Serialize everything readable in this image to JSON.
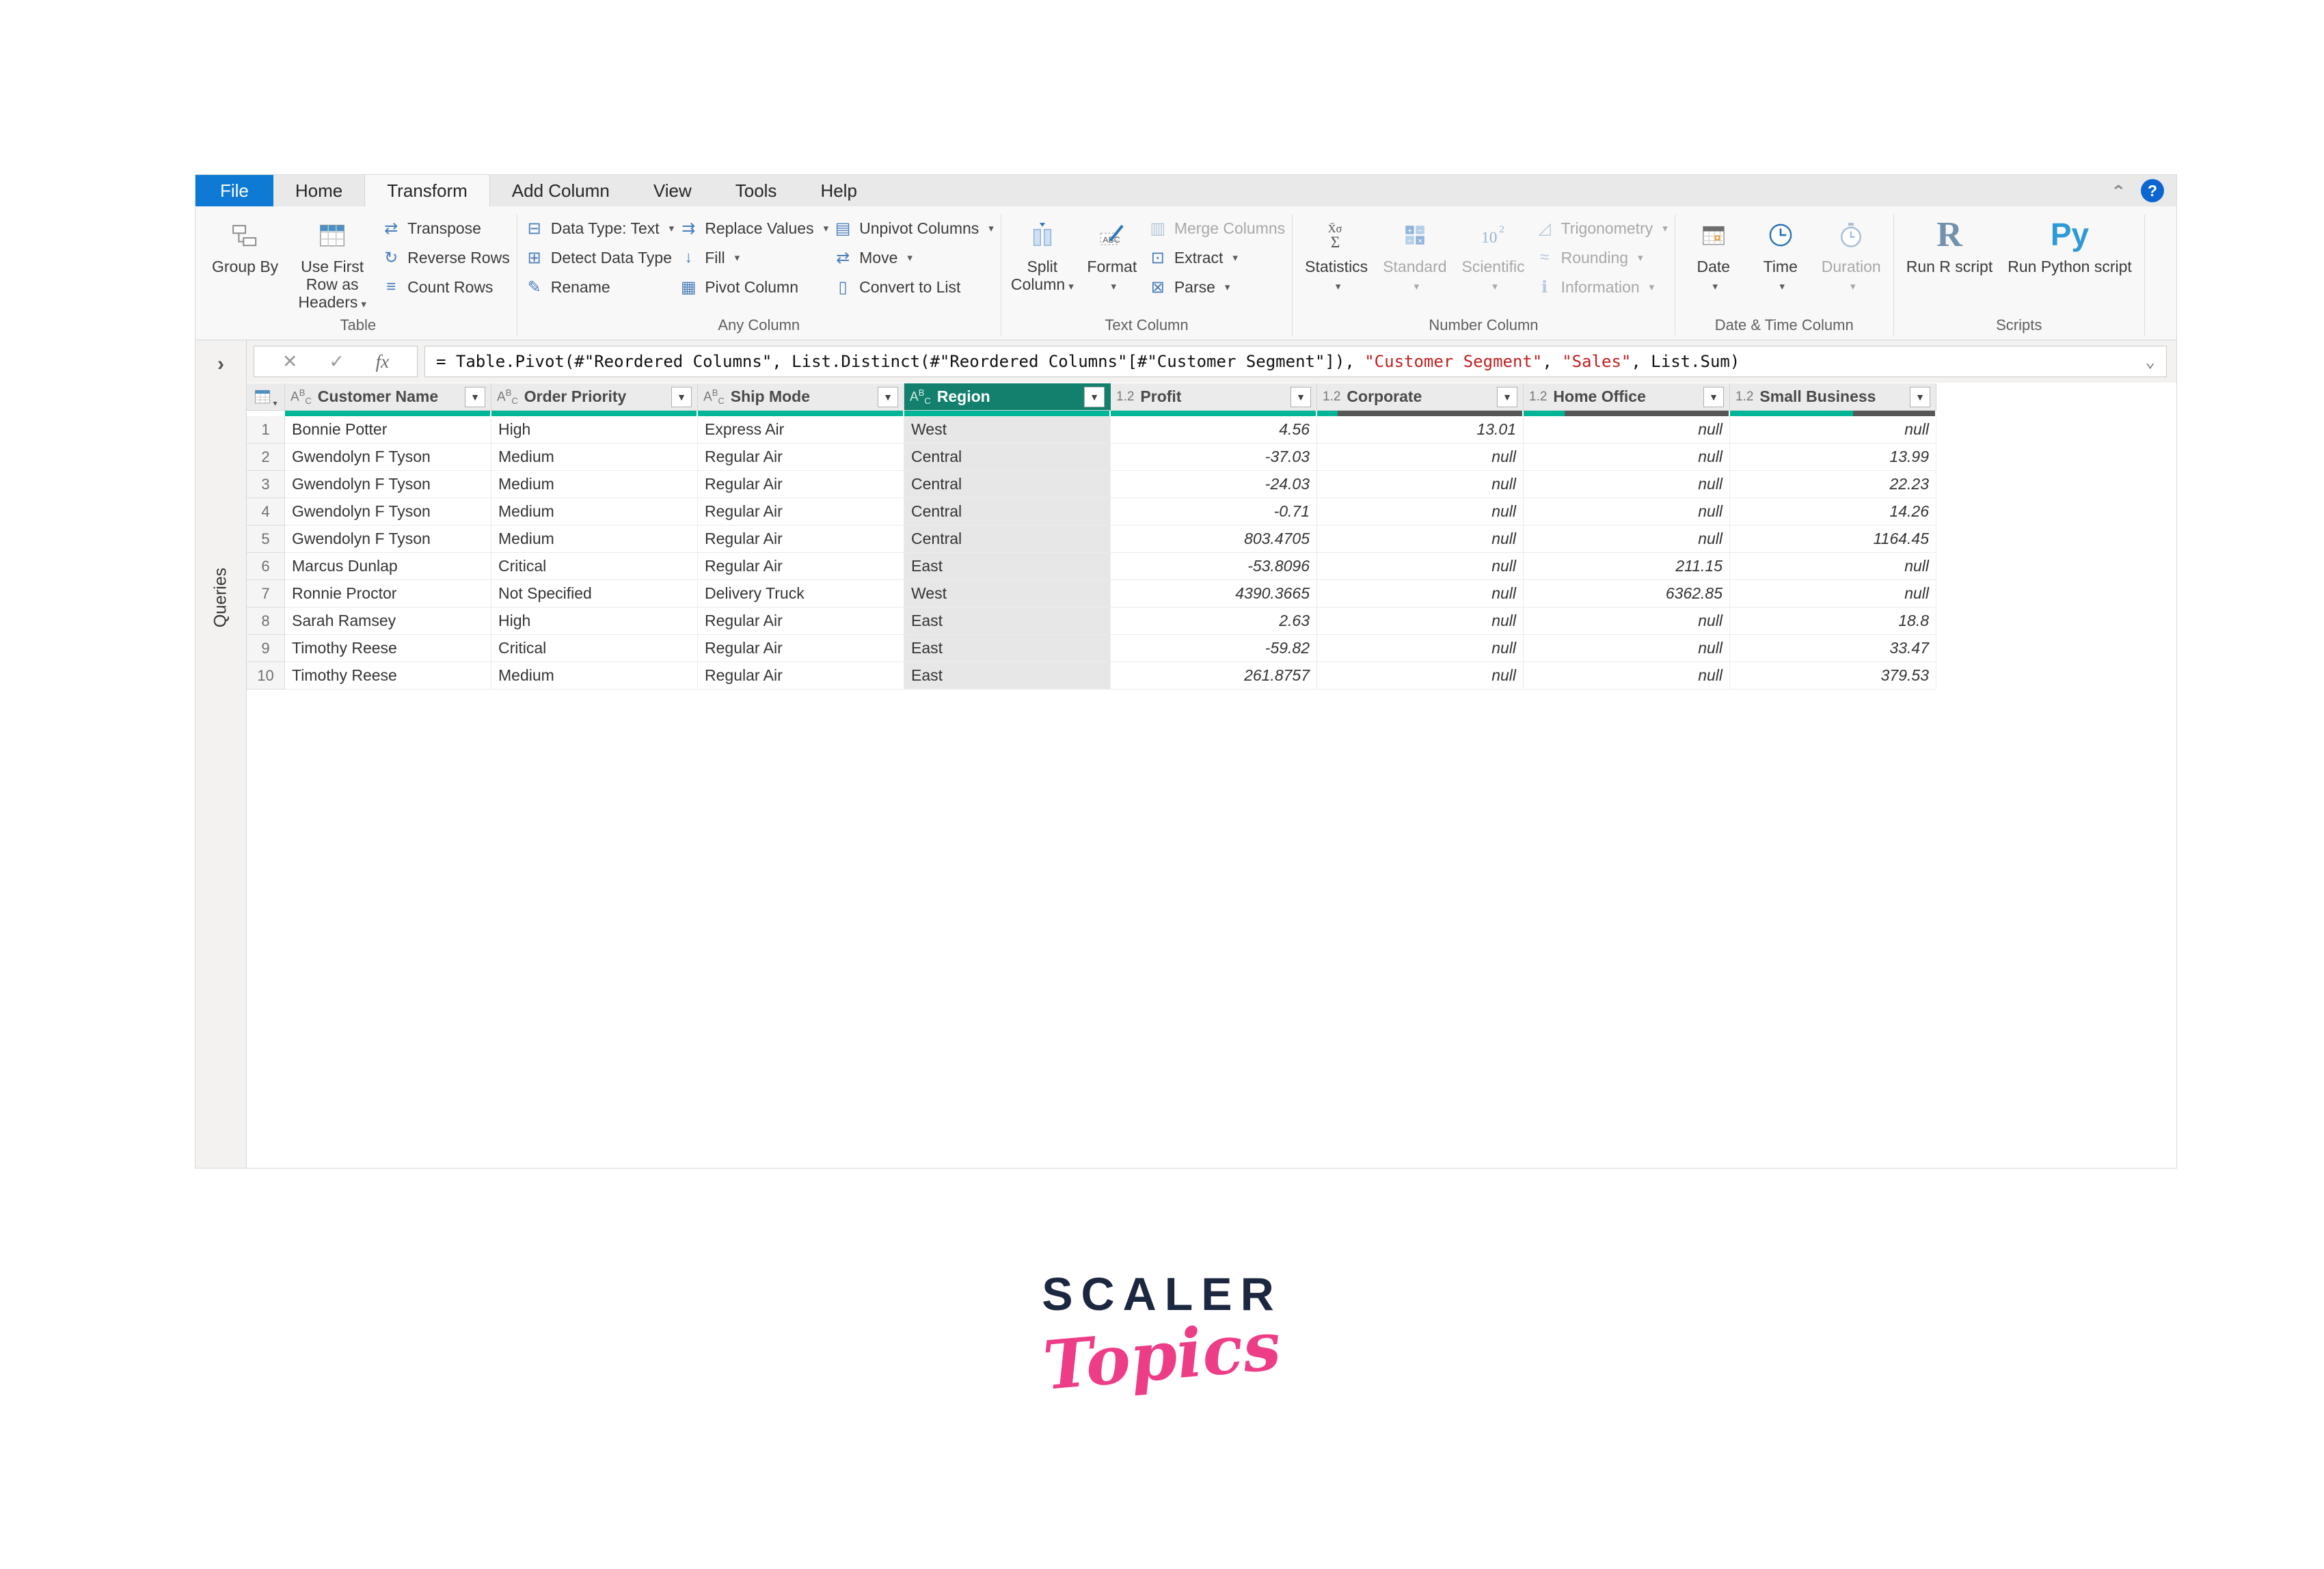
{
  "colors": {
    "file_tab_blue": "#0e7ad3",
    "selected_header_teal": "#12806d",
    "quality_bar_teal": "#00b696",
    "quality_bar_empty": "#575757",
    "formula_string_red": "#c02020",
    "logo_navy": "#1c2740",
    "logo_pink": "#ee3d87"
  },
  "tabs": {
    "file": "File",
    "home": "Home",
    "transform": "Transform",
    "add_column": "Add Column",
    "view": "View",
    "tools": "Tools",
    "help": "Help"
  },
  "window_controls": {
    "collapse_ribbon": "^",
    "help": "?"
  },
  "ribbon": {
    "table": {
      "label": "Table",
      "group_by": "Group By",
      "use_first_row": "Use First Row as Headers",
      "transpose": "Transpose",
      "reverse_rows": "Reverse Rows",
      "count_rows": "Count Rows"
    },
    "any_column": {
      "label": "Any Column",
      "data_type": "Data Type: Text",
      "detect_data_type": "Detect Data Type",
      "rename": "Rename",
      "replace_values": "Replace Values",
      "fill": "Fill",
      "pivot_column": "Pivot Column",
      "unpivot_columns": "Unpivot Columns",
      "move": "Move",
      "convert_to_list": "Convert to List"
    },
    "text_column": {
      "label": "Text Column",
      "split_column": "Split Column",
      "format": "Format",
      "merge_columns": "Merge Columns",
      "extract": "Extract",
      "parse": "Parse"
    },
    "number_column": {
      "label": "Number Column",
      "statistics": "Statistics",
      "standard": "Standard",
      "scientific": "Scientific",
      "trigonometry": "Trigonometry",
      "rounding": "Rounding",
      "information": "Information"
    },
    "date_time": {
      "label": "Date & Time Column",
      "date": "Date",
      "time": "Time",
      "duration": "Duration"
    },
    "scripts": {
      "label": "Scripts",
      "run_r": "Run R script",
      "run_python": "Run Python script",
      "r_icon": "R",
      "py_icon": "Py"
    }
  },
  "formula_bar": {
    "pre": "= Table.Pivot(#\"Reordered Columns\", List.Distinct(#\"Reordered Columns\"[#\"Customer Segment\"]), ",
    "str1": "\"Customer Segment\"",
    "comma": ", ",
    "str2": "\"Sales\"",
    "post": ", List.Sum)"
  },
  "sidebar": {
    "label": "Queries"
  },
  "grid": {
    "columns": [
      {
        "name": "Customer Name",
        "type": "text",
        "type_icon": "ABC",
        "quality": 1,
        "selected": false
      },
      {
        "name": "Order Priority",
        "type": "text",
        "type_icon": "ABC",
        "quality": 1,
        "selected": false
      },
      {
        "name": "Ship Mode",
        "type": "text",
        "type_icon": "ABC",
        "quality": 1,
        "selected": false
      },
      {
        "name": "Region",
        "type": "text",
        "type_icon": "ABC",
        "quality": 1,
        "selected": true
      },
      {
        "name": "Profit",
        "type": "number",
        "type_icon": "1.2",
        "quality": 1,
        "selected": false
      },
      {
        "name": "Corporate",
        "type": "number",
        "type_icon": "1.2",
        "quality": 0.1,
        "selected": false
      },
      {
        "name": "Home Office",
        "type": "number",
        "type_icon": "1.2",
        "quality": 0.2,
        "selected": false
      },
      {
        "name": "Small Business",
        "type": "number",
        "type_icon": "1.2",
        "quality": 0.6,
        "selected": false
      }
    ],
    "rows": [
      [
        "Bonnie Potter",
        "High",
        "Express Air",
        "West",
        "4.56",
        "13.01",
        "null",
        "null"
      ],
      [
        "Gwendolyn F Tyson",
        "Medium",
        "Regular Air",
        "Central",
        "-37.03",
        "null",
        "null",
        "13.99"
      ],
      [
        "Gwendolyn F Tyson",
        "Medium",
        "Regular Air",
        "Central",
        "-24.03",
        "null",
        "null",
        "22.23"
      ],
      [
        "Gwendolyn F Tyson",
        "Medium",
        "Regular Air",
        "Central",
        "-0.71",
        "null",
        "null",
        "14.26"
      ],
      [
        "Gwendolyn F Tyson",
        "Medium",
        "Regular Air",
        "Central",
        "803.4705",
        "null",
        "null",
        "1164.45"
      ],
      [
        "Marcus Dunlap",
        "Critical",
        "Regular Air",
        "East",
        "-53.8096",
        "null",
        "211.15",
        "null"
      ],
      [
        "Ronnie Proctor",
        "Not Specified",
        "Delivery Truck",
        "West",
        "4390.3665",
        "null",
        "6362.85",
        "null"
      ],
      [
        "Sarah Ramsey",
        "High",
        "Regular Air",
        "East",
        "2.63",
        "null",
        "null",
        "18.8"
      ],
      [
        "Timothy Reese",
        "Critical",
        "Regular Air",
        "East",
        "-59.82",
        "null",
        "null",
        "33.47"
      ],
      [
        "Timothy Reese",
        "Medium",
        "Regular Air",
        "East",
        "261.8757",
        "null",
        "null",
        "379.53"
      ]
    ]
  },
  "logo": {
    "line1": "SCALER",
    "line2": "Topics"
  }
}
